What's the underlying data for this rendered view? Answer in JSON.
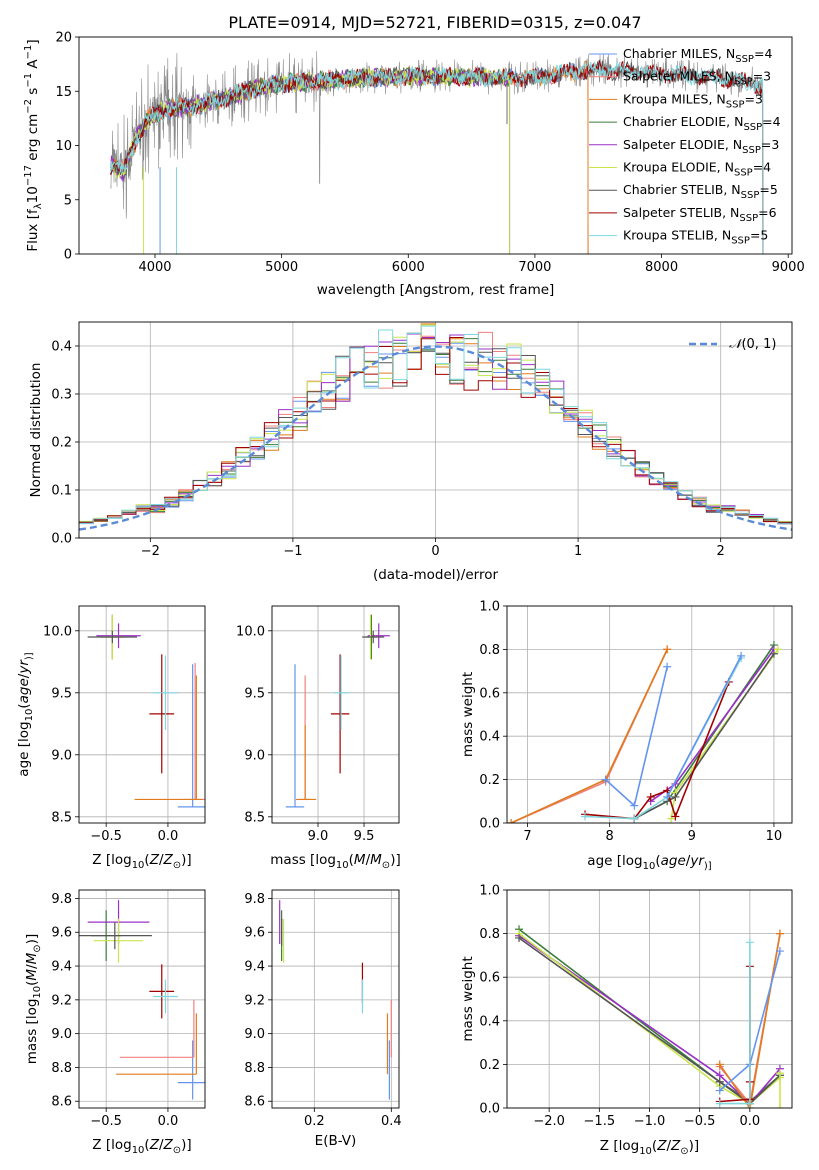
{
  "figure_title": "PLATE=0914, MJD=52721, FIBERID=0315, z=0.047",
  "colors": {
    "chabrier_miles": "#6495ED",
    "salpeter_miles": "#F08080",
    "kroupa_miles": "#E07B1E",
    "chabrier_elodie": "#3A7D3A",
    "salpeter_elodie": "#9B30C8",
    "kroupa_elodie": "#C8E64B",
    "chabrier_stelib": "#555555",
    "salpeter_stelib": "#A00000",
    "kroupa_stelib": "#7FD8E0",
    "data": "#888888",
    "normal_curve": "#5B8BD8"
  },
  "chart_data": [
    {
      "id": "spectrum",
      "type": "line",
      "xlabel": "wavelength [Angstrom, rest frame]",
      "ylabel_parts": [
        "Flux [f",
        "λ",
        "10",
        "−17",
        " erg cm",
        "−2",
        " s",
        "−1",
        " A",
        "−1",
        "]"
      ],
      "xlim": [
        3400,
        9030
      ],
      "ylim": [
        0,
        20
      ],
      "xticks": [
        4000,
        5000,
        6000,
        7000,
        8000,
        9000
      ],
      "yticks": [
        0,
        5,
        10,
        15,
        20
      ],
      "legend_position": "right",
      "legend": [
        {
          "label": "Chabrier MILES, N",
          "sub": "SSP",
          "suffix": "=4",
          "color": "#6495ED"
        },
        {
          "label": "Salpeter MILES, N",
          "sub": "SSP",
          "suffix": "=3",
          "color": "#F08080"
        },
        {
          "label": "Kroupa MILES, N",
          "sub": "SSP",
          "suffix": "=3",
          "color": "#E07B1E"
        },
        {
          "label": "Chabrier ELODIE, N",
          "sub": "SSP",
          "suffix": "=4",
          "color": "#3A7D3A"
        },
        {
          "label": "Salpeter ELODIE, N",
          "sub": "SSP",
          "suffix": "=3",
          "color": "#9B30C8"
        },
        {
          "label": "Kroupa ELODIE, N",
          "sub": "SSP",
          "suffix": "=4",
          "color": "#C8E64B"
        },
        {
          "label": "Chabrier STELIB, N",
          "sub": "SSP",
          "suffix": "=5",
          "color": "#555555"
        },
        {
          "label": "Salpeter STELIB, N",
          "sub": "SSP",
          "suffix": "=6",
          "color": "#A00000"
        },
        {
          "label": "Kroupa STELIB, N",
          "sub": "SSP",
          "suffix": "=5",
          "color": "#7FD8E0"
        }
      ],
      "continuum": [
        [
          3650,
          8.2
        ],
        [
          3750,
          7.6
        ],
        [
          3850,
          10.6
        ],
        [
          3950,
          12.5
        ],
        [
          4100,
          13.4
        ],
        [
          4300,
          13.6
        ],
        [
          4500,
          14.2
        ],
        [
          4800,
          15.3
        ],
        [
          5000,
          15.7
        ],
        [
          5500,
          16.1
        ],
        [
          6000,
          16.4
        ],
        [
          6500,
          16.3
        ],
        [
          7000,
          16.2
        ],
        [
          7300,
          16.8
        ],
        [
          7500,
          17.0
        ],
        [
          8000,
          16.6
        ],
        [
          8300,
          16.4
        ],
        [
          8700,
          15.8
        ],
        [
          8800,
          15.4
        ]
      ],
      "model_xmax": {
        "MILES": 7420,
        "ELODIE": 6800,
        "STELIB": 8800
      }
    },
    {
      "id": "residuals",
      "type": "histogram",
      "xlabel": "(data-model)/error",
      "ylabel": "Normed distribution",
      "xlim": [
        -2.5,
        2.5
      ],
      "ylim": [
        0,
        0.45
      ],
      "xticks": [
        -2,
        -1,
        0,
        1,
        2
      ],
      "yticks": [
        0.0,
        0.1,
        0.2,
        0.3,
        0.4
      ],
      "bin_width": 0.1,
      "legend_position": "top-right",
      "legend_parts": [
        "𝒩",
        "(0, 1)"
      ],
      "curve": "standard normal pdf"
    },
    {
      "id": "age_vs_Z",
      "type": "errorbar",
      "xlabel_parts": [
        "Z [log",
        "10",
        "(",
        "Z",
        "/",
        "Z",
        "⊙",
        ")]"
      ],
      "ylabel_parts": [
        "age  [log",
        "10",
        "(",
        "age",
        "/",
        "yr",
        ")]"
      ],
      "xlim": [
        -0.72,
        0.3
      ],
      "ylim": [
        8.45,
        10.2
      ],
      "xticks": [
        -0.5,
        0.0
      ],
      "yticks": [
        8.5,
        9.0,
        9.5,
        10.0
      ],
      "points": [
        {
          "color": "#6495ED",
          "x": 0.2,
          "y": 8.58,
          "xerr": 0.12,
          "yerr": [
            0.0,
            1.15
          ]
        },
        {
          "color": "#F08080",
          "x": 0.22,
          "y": 8.64,
          "xerr": 0.1,
          "yerr": [
            0.0,
            1.1
          ]
        },
        {
          "color": "#E07B1E",
          "x": 0.23,
          "y": 8.64,
          "xerr": [
            0.5,
            0.05
          ],
          "yerr": [
            0.0,
            1.0
          ]
        },
        {
          "color": "#3A7D3A",
          "x": -0.45,
          "y": 9.95,
          "xerr": 0.1,
          "yerr": 0.18
        },
        {
          "color": "#9B30C8",
          "x": -0.4,
          "y": 9.96,
          "xerr": 0.18,
          "yerr": 0.1
        },
        {
          "color": "#C8E64B",
          "x": -0.45,
          "y": 9.95,
          "xerr": 0.1,
          "yerr": 0.18
        },
        {
          "color": "#555555",
          "x": -0.45,
          "y": 9.95,
          "xerr": 0.2,
          "yerr": 0.05
        },
        {
          "color": "#A00000",
          "x": -0.05,
          "y": 9.33,
          "xerr": 0.1,
          "yerr": 0.48
        },
        {
          "color": "#7FD8E0",
          "x": -0.02,
          "y": 9.5,
          "xerr": 0.1,
          "yerr": 0.3
        }
      ]
    },
    {
      "id": "age_vs_mass",
      "type": "errorbar",
      "xlabel_parts": [
        "mass [log",
        "10",
        "(",
        "M",
        "/",
        "M",
        "⊙",
        ")]"
      ],
      "xlim": [
        8.5,
        9.88
      ],
      "ylim": [
        8.45,
        10.2
      ],
      "xticks": [
        9.0,
        9.5
      ],
      "yticks": [
        8.5,
        9.0,
        9.5,
        10.0
      ],
      "points": [
        {
          "color": "#6495ED",
          "x": 8.75,
          "y": 8.58,
          "xerr": 0.1,
          "yerr": [
            0.0,
            1.15
          ]
        },
        {
          "color": "#F08080",
          "x": 8.86,
          "y": 8.64,
          "xerr": 0.05,
          "yerr": [
            0.0,
            1.0
          ]
        },
        {
          "color": "#E07B1E",
          "x": 8.86,
          "y": 8.64,
          "xerr": [
            0.1,
            0.12
          ],
          "yerr": [
            0.0,
            0.6
          ]
        },
        {
          "color": "#3A7D3A",
          "x": 9.58,
          "y": 9.95,
          "xerr": 0.06,
          "yerr": 0.18
        },
        {
          "color": "#9B30C8",
          "x": 9.66,
          "y": 9.96,
          "xerr": 0.12,
          "yerr": 0.1
        },
        {
          "color": "#C8E64B",
          "x": 9.57,
          "y": 9.95,
          "xerr": 0.06,
          "yerr": 0.18
        },
        {
          "color": "#555555",
          "x": 9.6,
          "y": 9.95,
          "xerr": 0.12,
          "yerr": 0.05
        },
        {
          "color": "#A00000",
          "x": 9.24,
          "y": 9.33,
          "xerr": 0.1,
          "yerr": 0.48
        },
        {
          "color": "#7FD8E0",
          "x": 9.25,
          "y": 9.5,
          "xerr": 0.08,
          "yerr": 0.3
        }
      ]
    },
    {
      "id": "massweight_vs_age",
      "type": "line",
      "xlabel_parts": [
        "age  [log",
        "10",
        "(",
        "age",
        "/",
        "yr",
        ")]"
      ],
      "ylabel": "mass weight",
      "xlim": [
        6.75,
        10.22
      ],
      "ylim": [
        0.0,
        1.0
      ],
      "xticks": [
        7,
        8,
        9,
        10
      ],
      "yticks": [
        0.0,
        0.2,
        0.4,
        0.6,
        0.8,
        1.0
      ],
      "series": [
        {
          "color": "#F08080",
          "points": [
            [
              6.8,
              0.0
            ],
            [
              7.95,
              0.19
            ],
            [
              8.7,
              0.8
            ]
          ]
        },
        {
          "color": "#E07B1E",
          "points": [
            [
              6.8,
              0.0
            ],
            [
              7.95,
              0.2
            ],
            [
              8.7,
              0.8
            ]
          ]
        },
        {
          "color": "#6495ED",
          "points": [
            [
              7.95,
              0.2
            ],
            [
              8.3,
              0.08
            ],
            [
              8.7,
              0.72
            ]
          ]
        },
        {
          "color": "#3A7D3A",
          "points": [
            [
              8.3,
              0.02
            ],
            [
              8.7,
              0.1
            ],
            [
              10.0,
              0.82
            ]
          ]
        },
        {
          "color": "#9B30C8",
          "points": [
            [
              8.5,
              0.1
            ],
            [
              8.8,
              0.18
            ],
            [
              10.0,
              0.8
            ]
          ]
        },
        {
          "color": "#C8E64B",
          "points": [
            [
              8.75,
              0.02
            ],
            [
              8.8,
              0.14
            ],
            [
              10.05,
              0.8
            ]
          ]
        },
        {
          "color": "#555555",
          "points": [
            [
              8.3,
              0.02
            ],
            [
              8.8,
              0.12
            ],
            [
              10.0,
              0.78
            ]
          ]
        },
        {
          "color": "#A00000",
          "points": [
            [
              7.7,
              0.04
            ],
            [
              8.3,
              0.02
            ],
            [
              8.5,
              0.12
            ],
            [
              8.7,
              0.15
            ],
            [
              8.8,
              0.03
            ],
            [
              9.45,
              0.65
            ]
          ]
        },
        {
          "color": "#7FD8E0",
          "points": [
            [
              7.7,
              0.03
            ],
            [
              8.3,
              0.02
            ],
            [
              8.7,
              0.12
            ],
            [
              9.6,
              0.76
            ]
          ]
        },
        {
          "color": "#6495ED",
          "points": [
            [
              8.7,
              0.12
            ],
            [
              9.6,
              0.77
            ]
          ]
        }
      ]
    },
    {
      "id": "mass_vs_Z",
      "type": "errorbar",
      "xlabel_parts": [
        "Z [log",
        "10",
        "(",
        "Z",
        "/",
        "Z",
        "⊙",
        ")]"
      ],
      "ylabel_parts": [
        "mass [log",
        "10",
        "(",
        "M",
        "/",
        "M",
        "⊙",
        ")]"
      ],
      "xlim": [
        -0.72,
        0.3
      ],
      "ylim": [
        8.56,
        9.85
      ],
      "xticks": [
        -0.5,
        0.0
      ],
      "yticks": [
        8.6,
        8.8,
        9.0,
        9.2,
        9.4,
        9.6,
        9.8
      ],
      "points": [
        {
          "color": "#6495ED",
          "x": 0.2,
          "y": 8.71,
          "xerr": 0.12,
          "yerr": [
            0.1,
            0.25
          ]
        },
        {
          "color": "#F08080",
          "x": 0.21,
          "y": 8.86,
          "xerr": [
            0.6,
            0.0
          ],
          "yerr": [
            0.0,
            0.34
          ]
        },
        {
          "color": "#E07B1E",
          "x": 0.23,
          "y": 8.76,
          "xerr": [
            0.65,
            0.0
          ],
          "yerr": [
            0.0,
            0.36
          ]
        },
        {
          "color": "#3A7D3A",
          "x": -0.5,
          "y": 9.58,
          "xerr": 0.12,
          "yerr": 0.15
        },
        {
          "color": "#9B30C8",
          "x": -0.4,
          "y": 9.66,
          "xerr": 0.25,
          "yerr": 0.13
        },
        {
          "color": "#C8E64B",
          "x": -0.4,
          "y": 9.55,
          "xerr": 0.2,
          "yerr": 0.13
        },
        {
          "color": "#555555",
          "x": -0.43,
          "y": 9.58,
          "xerr": 0.3,
          "yerr": 0.08
        },
        {
          "color": "#A00000",
          "x": -0.05,
          "y": 9.25,
          "xerr": 0.1,
          "yerr": 0.16
        },
        {
          "color": "#7FD8E0",
          "x": -0.02,
          "y": 9.22,
          "xerr": 0.1,
          "yerr": 0.1
        }
      ]
    },
    {
      "id": "mass_vs_ebv",
      "type": "errorbar",
      "xlabel": "E(B-V)",
      "xlim": [
        0.09,
        0.42
      ],
      "ylim": [
        8.56,
        9.85
      ],
      "xticks": [
        0.2,
        0.4
      ],
      "yticks": [
        8.6,
        8.8,
        9.0,
        9.2,
        9.4,
        9.6,
        9.8
      ],
      "points": [
        {
          "color": "#6495ED",
          "x": 0.395,
          "y": 8.71,
          "xerr": 0.0,
          "yerr": [
            0.1,
            0.25
          ]
        },
        {
          "color": "#F08080",
          "x": 0.4,
          "y": 8.86,
          "xerr": 0.0,
          "yerr": [
            0.0,
            0.34
          ]
        },
        {
          "color": "#E07B1E",
          "x": 0.39,
          "y": 8.76,
          "xerr": 0.0,
          "yerr": [
            0.0,
            0.36
          ]
        },
        {
          "color": "#3A7D3A",
          "x": 0.115,
          "y": 9.58,
          "xerr": 0.0,
          "yerr": 0.15
        },
        {
          "color": "#9B30C8",
          "x": 0.11,
          "y": 9.66,
          "xerr": 0.0,
          "yerr": 0.13
        },
        {
          "color": "#C8E64B",
          "x": 0.12,
          "y": 9.55,
          "xerr": 0.0,
          "yerr": 0.13
        },
        {
          "color": "#555555",
          "x": 0.115,
          "y": 9.6,
          "xerr": 0.0,
          "yerr": 0.08
        },
        {
          "color": "#A00000",
          "x": 0.325,
          "y": 9.3,
          "xerr": 0.0,
          "yerr": 0.12
        },
        {
          "color": "#7FD8E0",
          "x": 0.325,
          "y": 9.22,
          "xerr": 0.0,
          "yerr": 0.1
        }
      ]
    },
    {
      "id": "massweight_vs_Z",
      "type": "line",
      "xlabel_parts": [
        "Z [log",
        "10",
        "(",
        "Z",
        "/",
        "Z",
        "⊙",
        ")]"
      ],
      "ylabel": "mass weight",
      "xlim": [
        -2.42,
        0.42
      ],
      "ylim": [
        0.0,
        1.0
      ],
      "xticks": [
        -2.0,
        -1.5,
        -1.0,
        -0.5,
        0.0
      ],
      "yticks": [
        0.0,
        0.2,
        0.4,
        0.6,
        0.8,
        1.0
      ],
      "series": [
        {
          "color": "#3A7D3A",
          "points": [
            [
              -2.3,
              0.82
            ],
            [
              -0.3,
              0.12
            ],
            [
              0.0,
              0.03
            ],
            [
              0.3,
              0.15
            ]
          ]
        },
        {
          "color": "#9B30C8",
          "points": [
            [
              -2.3,
              0.79
            ],
            [
              -0.3,
              0.15
            ],
            [
              0.0,
              0.02
            ],
            [
              0.3,
              0.18
            ]
          ]
        },
        {
          "color": "#C8E64B",
          "points": [
            [
              -2.3,
              0.8
            ],
            [
              -0.3,
              0.1
            ],
            [
              0.0,
              0.02
            ],
            [
              0.3,
              0.14
            ]
          ]
        },
        {
          "color": "#555555",
          "points": [
            [
              -2.3,
              0.78
            ],
            [
              -0.3,
              0.12
            ],
            [
              0.0,
              0.02
            ],
            [
              0.3,
              0.15
            ]
          ]
        },
        {
          "color": "#F08080",
          "points": [
            [
              -0.3,
              0.19
            ],
            [
              0.0,
              0.02
            ],
            [
              0.3,
              0.8
            ]
          ]
        },
        {
          "color": "#E07B1E",
          "points": [
            [
              -0.3,
              0.2
            ],
            [
              0.0,
              0.0
            ],
            [
              0.3,
              0.8
            ]
          ]
        },
        {
          "color": "#6495ED",
          "points": [
            [
              -0.3,
              0.08
            ],
            [
              0.0,
              0.2
            ],
            [
              0.3,
              0.72
            ]
          ]
        },
        {
          "color": "#A00000",
          "points": [
            [
              -0.3,
              0.03
            ],
            [
              0.0,
              0.04
            ],
            [
              0.0,
              0.65
            ],
            [
              0.0,
              0.12
            ]
          ]
        },
        {
          "color": "#7FD8E0",
          "points": [
            [
              -0.3,
              0.02
            ],
            [
              0.0,
              0.02
            ],
            [
              0.0,
              0.76
            ]
          ]
        },
        {
          "color": "#C8E64B",
          "points": [
            [
              0.3,
              0.0
            ],
            [
              0.3,
              0.16
            ]
          ]
        }
      ]
    }
  ]
}
